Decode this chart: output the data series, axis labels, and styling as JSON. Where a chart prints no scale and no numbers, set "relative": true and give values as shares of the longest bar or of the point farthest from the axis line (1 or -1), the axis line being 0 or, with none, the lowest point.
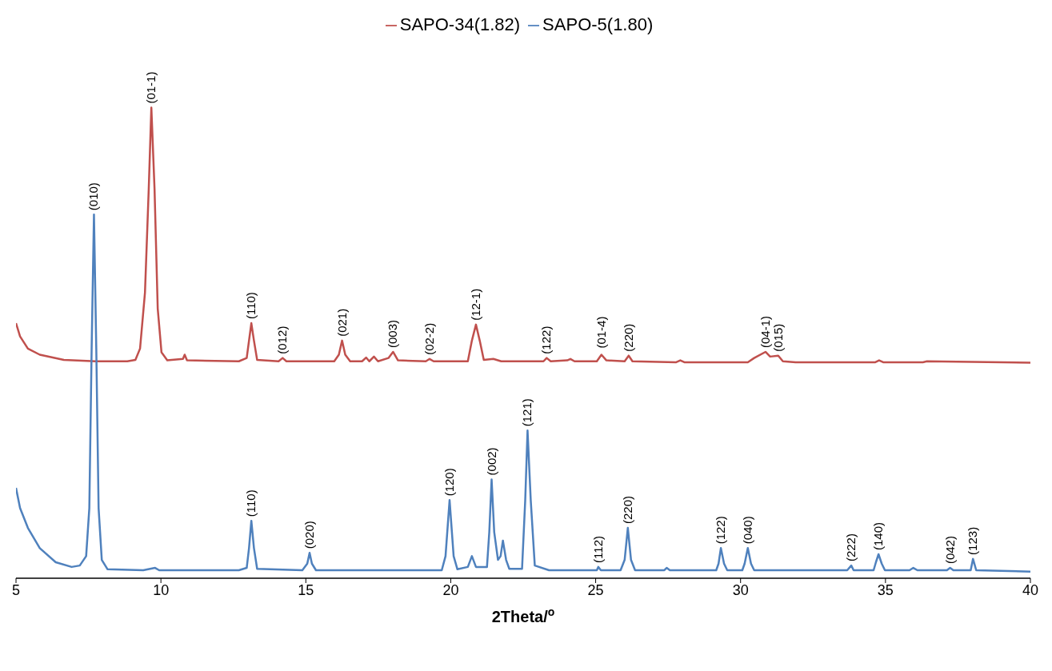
{
  "chart_data": {
    "type": "line",
    "relative": true,
    "xlabel": "2Theta/$^{o}$",
    "xlim": [
      5,
      40
    ],
    "xticks": [
      5,
      10,
      15,
      20,
      25,
      30,
      35,
      40
    ],
    "legend": "top",
    "grid": false,
    "marker": "none",
    "line_style": "solid",
    "series": [
      {
        "name": "SAPO-34(1.82)",
        "color": "#c0504d",
        "x": [
          5.0,
          5.14,
          5.41,
          5.82,
          6.65,
          7.75,
          8.84,
          9.12,
          9.28,
          9.45,
          9.58,
          9.67,
          9.78,
          9.89,
          10.02,
          10.22,
          10.76,
          10.82,
          10.9,
          12.69,
          12.96,
          13.04,
          13.12,
          13.21,
          13.32,
          14.06,
          14.2,
          14.33,
          15.98,
          16.14,
          16.25,
          16.36,
          16.53,
          16.94,
          17.08,
          17.19,
          17.35,
          17.49,
          17.85,
          18.01,
          18.18,
          19.14,
          19.27,
          19.41,
          20.59,
          20.73,
          20.87,
          21.0,
          21.14,
          21.47,
          21.74,
          23.2,
          23.31,
          23.45,
          24.02,
          24.13,
          24.27,
          25.04,
          25.2,
          25.37,
          26.0,
          26.14,
          26.27,
          27.78,
          27.92,
          28.06,
          30.25,
          30.47,
          30.86,
          31.02,
          31.3,
          31.46,
          31.9,
          34.65,
          34.78,
          34.92,
          36.29,
          36.43,
          40.0
        ],
        "values": [
          0.542,
          0.514,
          0.488,
          0.475,
          0.464,
          0.461,
          0.461,
          0.464,
          0.488,
          0.607,
          0.827,
          1.0,
          0.827,
          0.573,
          0.48,
          0.463,
          0.466,
          0.475,
          0.463,
          0.461,
          0.468,
          0.505,
          0.542,
          0.505,
          0.464,
          0.461,
          0.468,
          0.461,
          0.461,
          0.475,
          0.505,
          0.475,
          0.461,
          0.461,
          0.469,
          0.461,
          0.471,
          0.461,
          0.468,
          0.481,
          0.463,
          0.461,
          0.466,
          0.461,
          0.461,
          0.505,
          0.539,
          0.505,
          0.464,
          0.466,
          0.461,
          0.461,
          0.468,
          0.461,
          0.463,
          0.466,
          0.461,
          0.461,
          0.475,
          0.463,
          0.461,
          0.473,
          0.461,
          0.459,
          0.463,
          0.459,
          0.459,
          0.468,
          0.481,
          0.471,
          0.473,
          0.461,
          0.459,
          0.459,
          0.463,
          0.459,
          0.459,
          0.461,
          0.458
        ]
      },
      {
        "name": "SAPO-5(1.80)",
        "color": "#4f81bd",
        "x": [
          5.0,
          5.14,
          5.41,
          5.82,
          6.37,
          6.92,
          7.2,
          7.42,
          7.53,
          7.61,
          7.69,
          7.77,
          7.85,
          7.96,
          8.16,
          9.39,
          9.8,
          9.94,
          12.69,
          12.96,
          13.04,
          13.12,
          13.21,
          13.32,
          14.88,
          15.05,
          15.13,
          15.21,
          15.35,
          19.69,
          19.82,
          19.96,
          20.1,
          20.23,
          20.59,
          20.73,
          20.87,
          21.25,
          21.33,
          21.41,
          21.5,
          21.63,
          21.72,
          21.8,
          21.91,
          22.02,
          22.46,
          22.57,
          22.65,
          22.76,
          22.9,
          23.39,
          25.04,
          25.09,
          25.18,
          25.86,
          26.0,
          26.11,
          26.22,
          26.36,
          27.37,
          27.45,
          27.56,
          29.16,
          29.24,
          29.32,
          29.43,
          29.54,
          30.06,
          30.14,
          30.25,
          30.36,
          30.47,
          33.68,
          33.82,
          33.9,
          34.59,
          34.67,
          34.76,
          34.87,
          34.98,
          35.83,
          35.96,
          36.1,
          37.12,
          37.23,
          37.34,
          37.94,
          38.02,
          38.13,
          40.0
        ],
        "values": [
          0.192,
          0.149,
          0.107,
          0.064,
          0.034,
          0.024,
          0.027,
          0.047,
          0.149,
          0.488,
          0.773,
          0.488,
          0.149,
          0.039,
          0.019,
          0.017,
          0.022,
          0.017,
          0.017,
          0.022,
          0.064,
          0.122,
          0.064,
          0.02,
          0.017,
          0.031,
          0.054,
          0.031,
          0.017,
          0.017,
          0.047,
          0.166,
          0.047,
          0.019,
          0.024,
          0.047,
          0.024,
          0.024,
          0.098,
          0.21,
          0.098,
          0.039,
          0.047,
          0.08,
          0.039,
          0.02,
          0.02,
          0.166,
          0.314,
          0.166,
          0.027,
          0.017,
          0.017,
          0.024,
          0.017,
          0.017,
          0.039,
          0.107,
          0.039,
          0.017,
          0.017,
          0.022,
          0.017,
          0.017,
          0.031,
          0.064,
          0.031,
          0.017,
          0.017,
          0.031,
          0.064,
          0.031,
          0.017,
          0.017,
          0.027,
          0.017,
          0.017,
          0.034,
          0.051,
          0.031,
          0.017,
          0.017,
          0.022,
          0.017,
          0.017,
          0.022,
          0.017,
          0.017,
          0.041,
          0.017,
          0.014
        ]
      }
    ],
    "annotations": [
      {
        "text": "(01-1)",
        "x": 9.67,
        "y": 1.0
      },
      {
        "text": "(110)",
        "x": 13.12,
        "y": 0.542
      },
      {
        "text": "(012)",
        "x": 14.2,
        "y": 0.468
      },
      {
        "text": "(021)",
        "x": 16.25,
        "y": 0.505
      },
      {
        "text": "(003)",
        "x": 18.01,
        "y": 0.481
      },
      {
        "text": "(02-2)",
        "x": 19.27,
        "y": 0.466
      },
      {
        "text": "(12-1)",
        "x": 20.87,
        "y": 0.539
      },
      {
        "text": "(122)",
        "x": 23.31,
        "y": 0.468
      },
      {
        "text": "(01-4)",
        "x": 25.2,
        "y": 0.48
      },
      {
        "text": "(220)",
        "x": 26.14,
        "y": 0.473
      },
      {
        "text": "(04-1)",
        "x": 30.86,
        "y": 0.481
      },
      {
        "text": "(015)",
        "x": 31.3,
        "y": 0.473
      },
      {
        "text": "(010)",
        "x": 7.69,
        "y": 0.773
      },
      {
        "text": "(110)",
        "x": 13.12,
        "y": 0.122
      },
      {
        "text": "(020)",
        "x": 15.13,
        "y": 0.054
      },
      {
        "text": "(120)",
        "x": 19.96,
        "y": 0.166
      },
      {
        "text": "(002)",
        "x": 21.41,
        "y": 0.21
      },
      {
        "text": "(121)",
        "x": 22.65,
        "y": 0.314
      },
      {
        "text": "(112)",
        "x": 25.09,
        "y": 0.024
      },
      {
        "text": "(220)",
        "x": 26.11,
        "y": 0.107
      },
      {
        "text": "(122)",
        "x": 29.32,
        "y": 0.064
      },
      {
        "text": "(040)",
        "x": 30.25,
        "y": 0.064
      },
      {
        "text": "(222)",
        "x": 33.82,
        "y": 0.027
      },
      {
        "text": "(140)",
        "x": 34.76,
        "y": 0.051
      },
      {
        "text": "(042)",
        "x": 37.23,
        "y": 0.022
      },
      {
        "text": "(123)",
        "x": 38.02,
        "y": 0.041
      }
    ]
  }
}
